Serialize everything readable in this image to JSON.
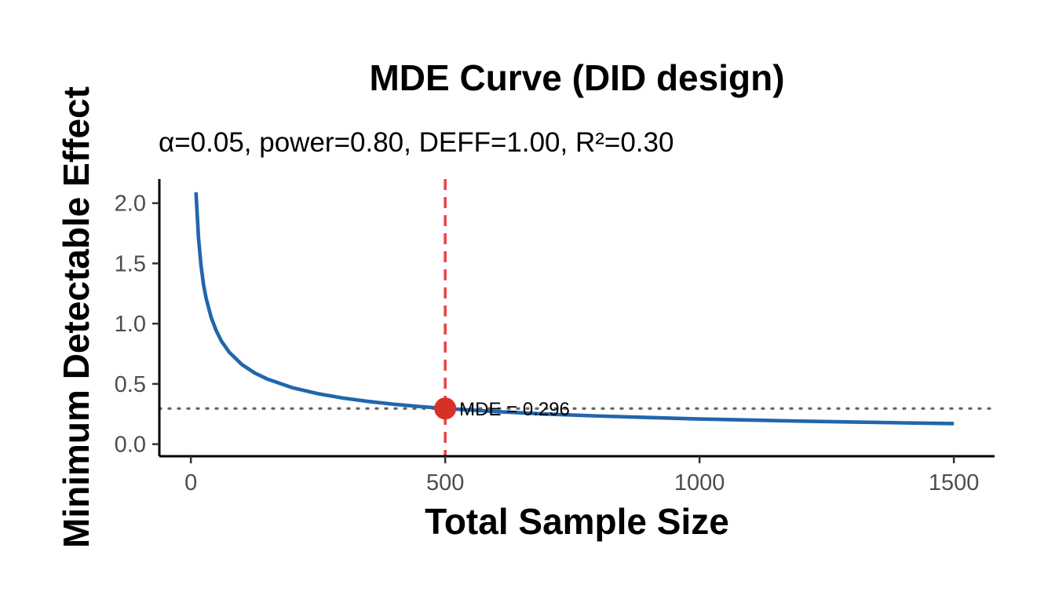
{
  "chart_data": {
    "type": "line",
    "title": "MDE Curve (DID design)",
    "subtitle": "α=0.05, power=0.80, DEFF=1.00, R²=0.30",
    "xlabel": "Total Sample Size",
    "ylabel": "Minimum Detectable Effect",
    "xlim": [
      -62,
      1580
    ],
    "ylim": [
      -0.1,
      2.2
    ],
    "x_ticks": [
      0,
      500,
      1000,
      1500
    ],
    "x_tick_labels": [
      "0",
      "500",
      "1000",
      "1500"
    ],
    "y_ticks": [
      0.0,
      0.5,
      1.0,
      1.5,
      2.0
    ],
    "y_tick_labels": [
      "0.0",
      "0.5",
      "1.0",
      "1.5",
      "2.0"
    ],
    "grid": false,
    "series": [
      {
        "name": "MDE",
        "color": "#2166ac",
        "x": [
          10,
          15,
          20,
          25,
          30,
          40,
          50,
          60,
          75,
          100,
          125,
          150,
          200,
          250,
          300,
          350,
          400,
          450,
          500,
          600,
          700,
          800,
          900,
          1000,
          1100,
          1200,
          1300,
          1400,
          1500
        ],
        "y": [
          2.09,
          1.71,
          1.48,
          1.32,
          1.21,
          1.05,
          0.94,
          0.856,
          0.765,
          0.662,
          0.592,
          0.541,
          0.468,
          0.419,
          0.382,
          0.354,
          0.331,
          0.312,
          0.296,
          0.27,
          0.25,
          0.234,
          0.221,
          0.209,
          0.2,
          0.191,
          0.184,
          0.177,
          0.171
        ]
      }
    ],
    "reference_lines": {
      "vertical": {
        "x": 500,
        "color": "#e8474c",
        "style": "dashed"
      },
      "horizontal": {
        "y": 0.296,
        "color": "#666666",
        "style": "dotted"
      }
    },
    "highlight_point": {
      "x": 500,
      "y": 0.296,
      "color": "#d73027"
    },
    "annotation": {
      "text": "MDE = 0.296",
      "x": 500,
      "y": 0.296
    }
  }
}
